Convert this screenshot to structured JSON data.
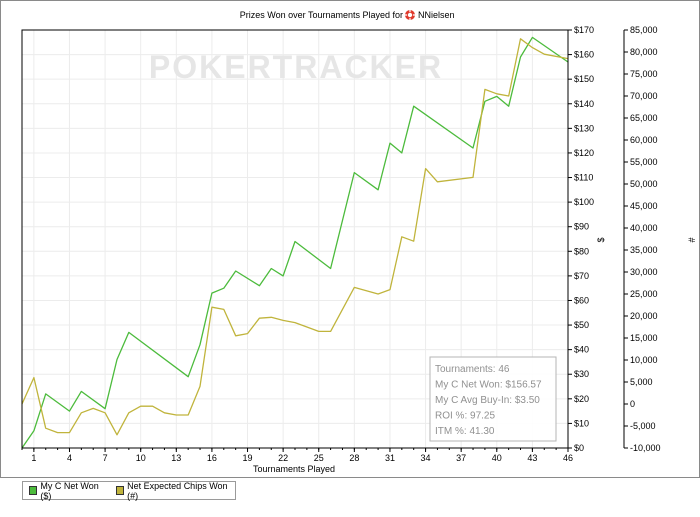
{
  "chart_data": {
    "type": "line",
    "title": "Prizes Won over Tournaments Played for",
    "player_name": "NNielsen",
    "watermark": "POKERTRACKER",
    "xlabel": "Tournaments Played",
    "ylabel_left": "$",
    "ylabel_right": "#",
    "xlim": [
      0,
      46
    ],
    "x_ticks": [
      "1",
      "4",
      "7",
      "10",
      "13",
      "16",
      "19",
      "22",
      "25",
      "28",
      "31",
      "34",
      "37",
      "40",
      "43",
      "46"
    ],
    "y_left_lim": [
      0,
      170
    ],
    "y_left_ticks": [
      "$0",
      "$10",
      "$20",
      "$30",
      "$40",
      "$50",
      "$60",
      "$70",
      "$80",
      "$90",
      "$100",
      "$110",
      "$120",
      "$130",
      "$140",
      "$150",
      "$160",
      "$170"
    ],
    "y_right_lim": [
      -10000,
      85000
    ],
    "y_right_ticks": [
      "-10,000",
      "-5,000",
      "0",
      "5,000",
      "10,000",
      "15,000",
      "20,000",
      "25,000",
      "30,000",
      "35,000",
      "40,000",
      "45,000",
      "50,000",
      "55,000",
      "60,000",
      "65,000",
      "70,000",
      "75,000",
      "80,000",
      "85,000"
    ],
    "grid": true,
    "series": [
      {
        "name": "My C Net Won ($)",
        "color": "#4cbb3c",
        "axis": "left",
        "x": [
          0,
          1,
          2,
          4,
          5,
          7,
          8,
          9,
          14,
          15,
          16,
          17,
          18,
          20,
          21,
          22,
          23,
          26,
          28,
          30,
          31,
          32,
          33,
          38,
          39,
          40,
          41,
          42,
          43,
          46
        ],
        "y": [
          0,
          7,
          22,
          15,
          23,
          16,
          36,
          47,
          29,
          42,
          63,
          65,
          72,
          66,
          73,
          70,
          84,
          73,
          112,
          105,
          124,
          120,
          139,
          122,
          141,
          143,
          139,
          159,
          167,
          157
        ]
      },
      {
        "name": "Net Expected Chips Won (#)",
        "color": "#c0b43c",
        "axis": "right",
        "x": [
          0,
          1,
          2,
          3,
          4,
          5,
          6,
          7,
          8,
          9,
          10,
          11,
          12,
          13,
          14,
          15,
          16,
          17,
          18,
          19,
          20,
          21,
          22,
          23,
          24,
          25,
          26,
          28,
          30,
          31,
          32,
          33,
          34,
          35,
          38,
          39,
          40,
          41,
          42,
          43,
          44,
          46
        ],
        "y": [
          0,
          6000,
          -5500,
          -6500,
          -6500,
          -2000,
          -1000,
          -2000,
          -7000,
          -2000,
          -500,
          -500,
          -2000,
          -2500,
          -2500,
          4000,
          22000,
          21500,
          15500,
          16000,
          19500,
          19700,
          19000,
          18500,
          17500,
          16500,
          16500,
          26500,
          25000,
          26000,
          38000,
          37000,
          53500,
          50500,
          51500,
          71500,
          70500,
          70000,
          83000,
          81000,
          79500,
          78500
        ]
      }
    ],
    "stats": [
      {
        "label": "Tournaments:",
        "value": "46"
      },
      {
        "label": "My C Net Won:",
        "value": "$156.57"
      },
      {
        "label": "My C Avg Buy-In:",
        "value": "$3.50"
      },
      {
        "label": "ROI %:",
        "value": "97.25"
      },
      {
        "label": "ITM %:",
        "value": "41.30"
      }
    ],
    "legend_placement": "bottom-left"
  }
}
